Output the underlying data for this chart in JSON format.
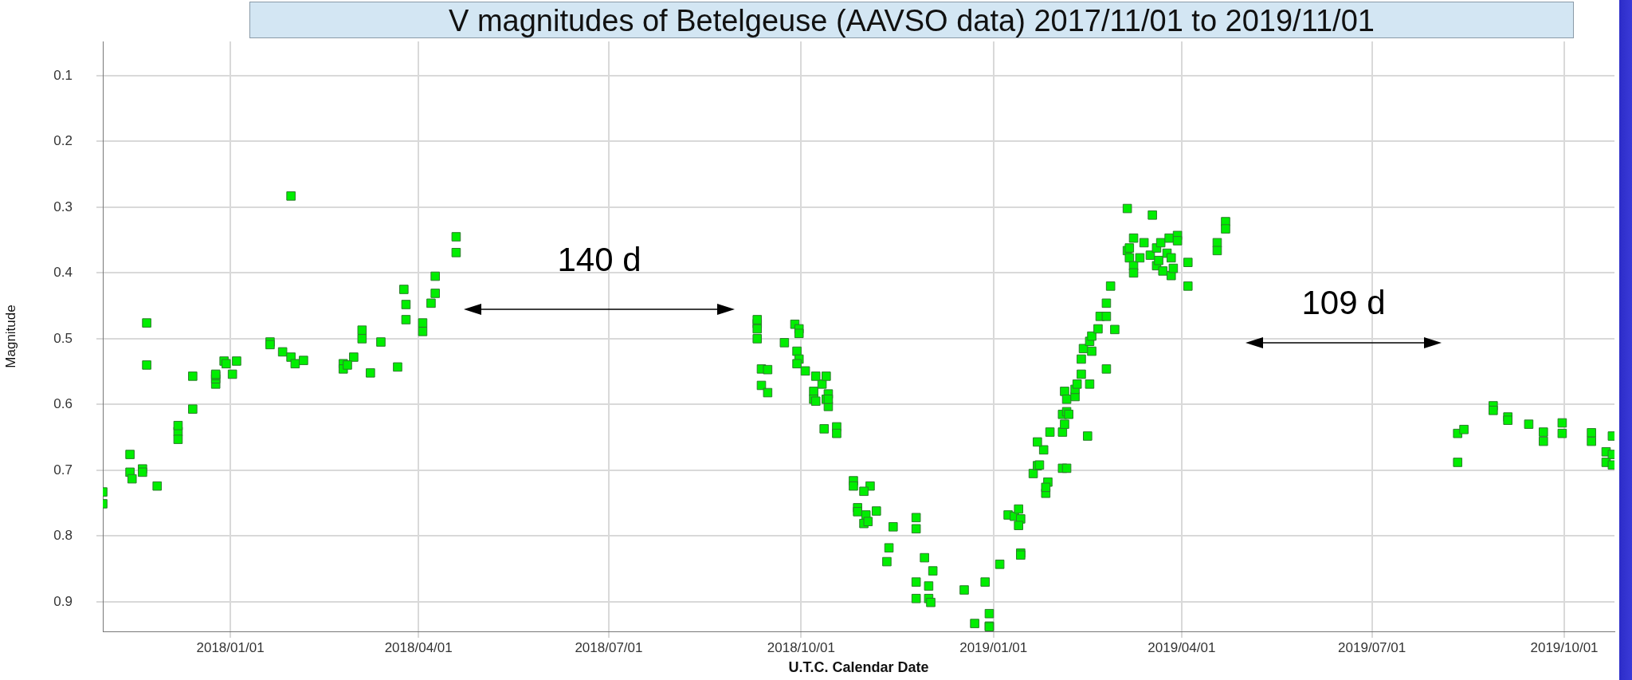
{
  "chart_data": {
    "type": "scatter",
    "title": "V magnitudes of Betelgeuse (AAVSO data) 2017/11/01 to 2019/11/01",
    "xlabel": "U.T.C. Calendar Date",
    "ylabel": "Magnitude",
    "x": [
      "2017-11-01",
      "2017-11-01",
      "2017-11-14",
      "2017-11-14",
      "2017-11-15",
      "2017-11-20",
      "2017-11-20",
      "2017-11-27",
      "2017-11-22",
      "2017-11-22",
      "2017-12-07",
      "2017-12-07",
      "2017-12-07",
      "2017-12-14",
      "2017-12-14",
      "2017-12-25",
      "2017-12-25",
      "2017-12-25",
      "2017-12-25",
      "2017-12-29",
      "2018-01-04",
      "2017-12-30",
      "2018-01-02",
      "2018-01-20",
      "2018-01-20",
      "2018-01-26",
      "2018-01-30",
      "2018-02-01",
      "2018-02-05",
      "2018-01-30",
      "2018-02-24",
      "2018-03-01",
      "2018-02-24",
      "2018-02-26",
      "2018-03-09",
      "2018-03-05",
      "2018-03-05",
      "2018-03-14",
      "2018-03-22",
      "2018-03-25",
      "2018-03-26",
      "2018-03-26",
      "2018-04-03",
      "2018-04-03",
      "2018-04-07",
      "2018-04-09",
      "2018-04-09",
      "2018-04-19",
      "2018-04-19",
      "2018-09-10",
      "2018-09-10",
      "2018-09-10",
      "2018-09-10",
      "2018-09-12",
      "2018-09-15",
      "2018-09-12",
      "2018-09-15",
      "2018-09-23",
      "2018-09-28",
      "2018-09-30",
      "2018-09-30",
      "2018-09-29",
      "2018-09-30",
      "2018-09-29",
      "2018-10-03",
      "2018-10-07",
      "2018-10-07",
      "2018-10-11",
      "2018-10-13",
      "2018-10-14",
      "2018-10-14",
      "2018-10-08",
      "2018-10-08",
      "2018-10-13",
      "2018-10-14",
      "2018-10-12",
      "2018-10-18",
      "2018-10-18",
      "2018-10-26",
      "2018-10-26",
      "2018-10-28",
      "2018-10-28",
      "2018-10-31",
      "2018-11-01",
      "2018-11-02",
      "2018-11-03",
      "2018-10-31",
      "2018-11-06",
      "2018-11-14",
      "2018-11-12",
      "2018-11-11",
      "2018-11-25",
      "2018-11-25",
      "2018-11-29",
      "2018-12-03",
      "2018-11-25",
      "2018-11-25",
      "2018-12-01",
      "2018-12-01",
      "2018-12-02",
      "2018-12-18",
      "2018-12-23",
      "2018-12-28",
      "2018-12-30",
      "2018-12-30",
      "2018-12-30",
      "2019-01-04",
      "2019-01-08",
      "2019-01-11",
      "2019-01-13",
      "2019-01-14",
      "2019-01-13",
      "2019-01-14",
      "2019-01-14",
      "2019-01-20",
      "2019-01-22",
      "2019-01-23",
      "2019-01-27",
      "2019-01-26",
      "2019-01-26",
      "2019-01-25",
      "2019-01-22",
      "2019-01-28",
      "2019-02-03",
      "2019-02-05",
      "2019-02-03",
      "2019-02-04",
      "2019-02-03",
      "2019-02-05",
      "2019-02-06",
      "2019-02-04",
      "2019-02-05",
      "2019-02-09",
      "2019-02-09",
      "2019-02-10",
      "2019-02-12",
      "2019-02-15",
      "2019-02-16",
      "2019-02-24",
      "2019-02-12",
      "2019-02-13",
      "2019-02-16",
      "2019-02-17",
      "2019-02-17",
      "2019-02-20",
      "2019-02-21",
      "2019-02-24",
      "2019-02-24",
      "2019-02-26",
      "2019-02-28",
      "2019-03-06",
      "2019-03-18",
      "2019-03-06",
      "2019-03-07",
      "2019-03-07",
      "2019-03-09",
      "2019-03-09",
      "2019-03-09",
      "2019-03-12",
      "2019-03-14",
      "2019-03-17",
      "2019-03-20",
      "2019-03-20",
      "2019-03-21",
      "2019-03-22",
      "2019-03-23",
      "2019-03-25",
      "2019-03-26",
      "2019-03-27",
      "2019-03-27",
      "2019-03-28",
      "2019-03-30",
      "2019-03-30",
      "2019-04-04",
      "2019-04-04",
      "2019-04-18",
      "2019-04-18",
      "2019-04-22",
      "2019-04-22",
      "2019-08-11",
      "2019-08-14",
      "2019-08-11",
      "2019-08-28",
      "2019-08-28",
      "2019-09-04",
      "2019-09-04",
      "2019-09-14",
      "2019-09-21",
      "2019-09-21",
      "2019-09-30",
      "2019-09-30",
      "2019-10-14",
      "2019-10-14",
      "2019-10-24",
      "2019-10-21",
      "2019-10-21",
      "2019-10-24",
      "2019-10-24"
    ],
    "values": [
      0.733,
      0.751,
      0.676,
      0.703,
      0.713,
      0.698,
      0.703,
      0.724,
      0.476,
      0.54,
      0.641,
      0.653,
      0.632,
      0.557,
      0.607,
      0.569,
      0.561,
      0.556,
      0.554,
      0.534,
      0.534,
      0.538,
      0.554,
      0.505,
      0.509,
      0.52,
      0.528,
      0.538,
      0.533,
      0.283,
      0.538,
      0.528,
      0.546,
      0.54,
      0.552,
      0.487,
      0.5,
      0.505,
      0.543,
      0.425,
      0.448,
      0.471,
      0.476,
      0.489,
      0.446,
      0.431,
      0.405,
      0.345,
      0.369,
      0.477,
      0.485,
      0.5,
      0.471,
      0.546,
      0.547,
      0.571,
      0.582,
      0.506,
      0.478,
      0.485,
      0.492,
      0.519,
      0.531,
      0.538,
      0.549,
      0.58,
      0.592,
      0.569,
      0.557,
      0.584,
      0.603,
      0.557,
      0.595,
      0.592,
      0.592,
      0.637,
      0.634,
      0.644,
      0.716,
      0.724,
      0.757,
      0.763,
      0.781,
      0.768,
      0.778,
      0.724,
      0.732,
      0.762,
      0.786,
      0.818,
      0.839,
      0.772,
      0.789,
      0.833,
      0.853,
      0.87,
      0.895,
      0.876,
      0.895,
      0.901,
      0.882,
      0.933,
      0.87,
      0.918,
      0.937,
      0.938,
      0.843,
      0.768,
      0.77,
      0.759,
      0.774,
      0.784,
      0.826,
      0.829,
      0.705,
      0.693,
      0.692,
      0.718,
      0.735,
      0.726,
      0.669,
      0.657,
      0.642,
      0.697,
      0.697,
      0.642,
      0.63,
      0.615,
      0.611,
      0.615,
      0.58,
      0.592,
      0.588,
      0.577,
      0.569,
      0.554,
      0.648,
      0.569,
      0.546,
      0.531,
      0.515,
      0.504,
      0.519,
      0.496,
      0.485,
      0.466,
      0.466,
      0.446,
      0.42,
      0.486,
      0.302,
      0.312,
      0.366,
      0.362,
      0.377,
      0.347,
      0.389,
      0.4,
      0.377,
      0.354,
      0.373,
      0.362,
      0.389,
      0.381,
      0.354,
      0.397,
      0.37,
      0.347,
      0.377,
      0.404,
      0.393,
      0.343,
      0.351,
      0.384,
      0.42,
      0.354,
      0.366,
      0.322,
      0.333,
      0.644,
      0.638,
      0.688,
      0.602,
      0.609,
      0.619,
      0.624,
      0.63,
      0.642,
      0.656,
      0.628,
      0.644,
      0.643,
      0.656,
      0.648,
      0.672,
      0.688,
      0.676,
      0.692
    ],
    "color": "#00ee00",
    "marker": "square",
    "grid": true,
    "xlim": [
      "2017-11-01",
      "2019-10-25"
    ],
    "xticks": [
      {
        "value": "2018-01-01",
        "label": "2018/01/01"
      },
      {
        "value": "2018-04-01",
        "label": "2018/04/01"
      },
      {
        "value": "2018-07-01",
        "label": "2018/07/01"
      },
      {
        "value": "2018-10-01",
        "label": "2018/10/01"
      },
      {
        "value": "2019-01-01",
        "label": "2019/01/01"
      },
      {
        "value": "2019-04-01",
        "label": "2019/04/01"
      },
      {
        "value": "2019-07-01",
        "label": "2019/07/01"
      },
      {
        "value": "2019-10-01",
        "label": "2019/10/01"
      }
    ],
    "ylim": [
      0.945,
      0.048
    ],
    "yticks": [
      0.1,
      0.2,
      0.3,
      0.4,
      0.5,
      0.6,
      0.7,
      0.8,
      0.9
    ],
    "annotations": [
      "140 d",
      "109 d"
    ]
  }
}
